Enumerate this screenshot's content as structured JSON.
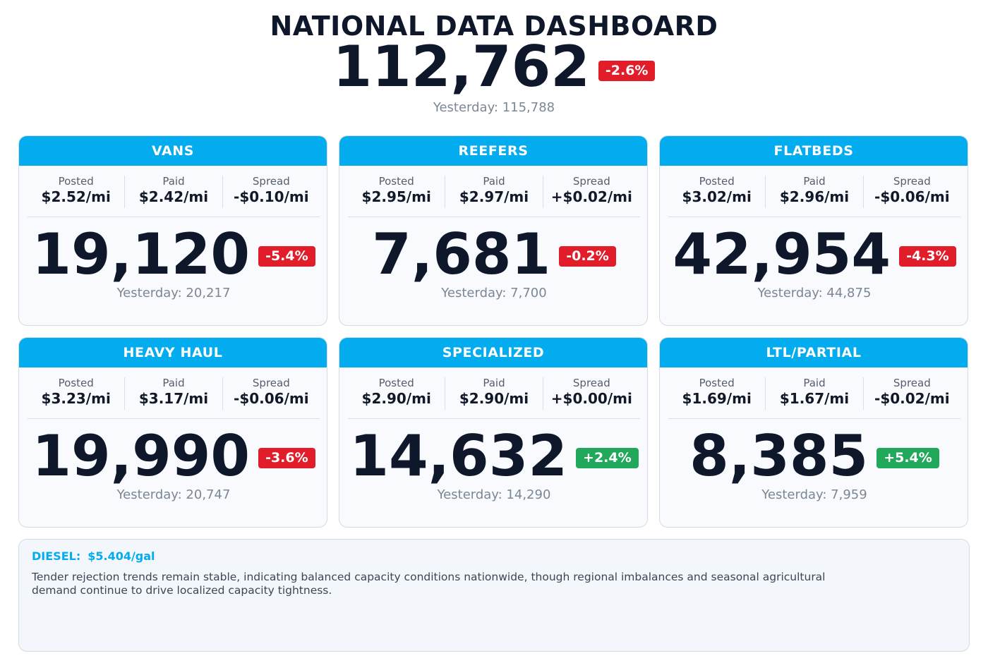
{
  "header": {
    "title": "NATIONAL DATA DASHBOARD",
    "total": "112,762",
    "change": "-2.6%",
    "change_direction": "down",
    "yesterday": "Yesterday: 115,788"
  },
  "colors": {
    "header_blue": "#03acef",
    "negative_red": "#e11d2a",
    "positive_green": "#22a85a"
  },
  "labels": {
    "posted": "Posted",
    "paid": "Paid",
    "spread": "Spread"
  },
  "cards": [
    {
      "title": "VANS",
      "posted": "$2.52/mi",
      "paid": "$2.42/mi",
      "spread": "-$0.10/mi",
      "count": "19,120",
      "change": "-5.4%",
      "change_direction": "down",
      "yesterday": "Yesterday: 20,217"
    },
    {
      "title": "REEFERS",
      "posted": "$2.95/mi",
      "paid": "$2.97/mi",
      "spread": "+$0.02/mi",
      "count": "7,681",
      "change": "-0.2%",
      "change_direction": "down",
      "yesterday": "Yesterday: 7,700"
    },
    {
      "title": "FLATBEDS",
      "posted": "$3.02/mi",
      "paid": "$2.96/mi",
      "spread": "-$0.06/mi",
      "count": "42,954",
      "change": "-4.3%",
      "change_direction": "down",
      "yesterday": "Yesterday: 44,875"
    },
    {
      "title": "HEAVY HAUL",
      "posted": "$3.23/mi",
      "paid": "$3.17/mi",
      "spread": "-$0.06/mi",
      "count": "19,990",
      "change": "-3.6%",
      "change_direction": "down",
      "yesterday": "Yesterday: 20,747"
    },
    {
      "title": "SPECIALIZED",
      "posted": "$2.90/mi",
      "paid": "$2.90/mi",
      "spread": "+$0.00/mi",
      "count": "14,632",
      "change": "+2.4%",
      "change_direction": "up",
      "yesterday": "Yesterday: 14,290"
    },
    {
      "title": "LTL/PARTIAL",
      "posted": "$1.69/mi",
      "paid": "$1.67/mi",
      "spread": "-$0.02/mi",
      "count": "8,385",
      "change": "+5.4%",
      "change_direction": "up",
      "yesterday": "Yesterday: 7,959"
    }
  ],
  "note": {
    "diesel_label": "DIESEL:",
    "diesel_value": "$5.404/gal",
    "text": "Tender rejection trends remain stable, indicating balanced capacity conditions nationwide, though regional imbalances and seasonal agricultural demand continue to drive localized capacity tightness."
  }
}
